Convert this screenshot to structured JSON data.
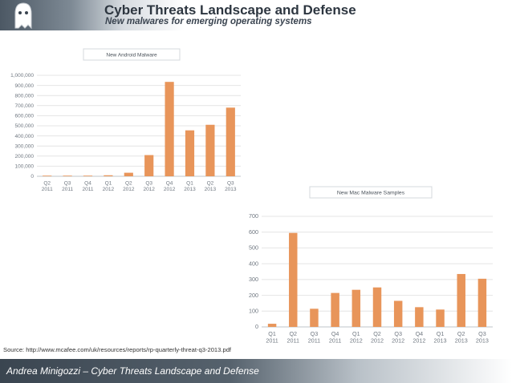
{
  "header": {
    "title": "Cyber Threats Landscape and Defense",
    "subtitle": "New malwares for emerging operating systems"
  },
  "source": "Source: http://www.mcafee.com/uk/resources/reports/rp-quarterly-threat-q3-2013.pdf",
  "footer": {
    "text": "Andrea Minigozzi – Cyber Threats Landscape and Defense"
  },
  "icons": {
    "logo": "ghost-icon"
  },
  "colors": {
    "bar": "#e8955a",
    "grid": "#e4e4e4",
    "axis_text": "#6f7780"
  },
  "chart_data": [
    {
      "type": "bar",
      "title": "New Android Malware",
      "categories": [
        [
          "Q2",
          "2011"
        ],
        [
          "Q3",
          "2011"
        ],
        [
          "Q4",
          "2011"
        ],
        [
          "Q1",
          "2012"
        ],
        [
          "Q2",
          "2012"
        ],
        [
          "Q3",
          "2012"
        ],
        [
          "Q4",
          "2012"
        ],
        [
          "Q1",
          "2013"
        ],
        [
          "Q2",
          "2013"
        ],
        [
          "Q3",
          "2013"
        ]
      ],
      "values": [
        2000,
        3000,
        6000,
        10000,
        35000,
        210000,
        935000,
        455000,
        510000,
        680000
      ],
      "yticks": [
        0,
        100000,
        200000,
        300000,
        400000,
        500000,
        600000,
        700000,
        800000,
        900000,
        1000000
      ],
      "ytick_labels": [
        "0",
        "100,000",
        "200,000",
        "300,000",
        "400,000",
        "500,000",
        "600,000",
        "700,000",
        "800,000",
        "900,000",
        "1,000,000"
      ],
      "ylim": [
        0,
        1000000
      ],
      "grid": true
    },
    {
      "type": "bar",
      "title": "New Mac Malware Samples",
      "categories": [
        [
          "Q1",
          "2011"
        ],
        [
          "Q2",
          "2011"
        ],
        [
          "Q3",
          "2011"
        ],
        [
          "Q4",
          "2011"
        ],
        [
          "Q1",
          "2012"
        ],
        [
          "Q2",
          "2012"
        ],
        [
          "Q3",
          "2012"
        ],
        [
          "Q4",
          "2012"
        ],
        [
          "Q1",
          "2013"
        ],
        [
          "Q2",
          "2013"
        ],
        [
          "Q3",
          "2013"
        ]
      ],
      "values": [
        20,
        595,
        115,
        215,
        235,
        250,
        165,
        125,
        110,
        335,
        305
      ],
      "yticks": [
        0,
        100,
        200,
        300,
        400,
        500,
        600,
        700
      ],
      "ytick_labels": [
        "0",
        "100",
        "200",
        "300",
        "400",
        "500",
        "600",
        "700"
      ],
      "ylim": [
        0,
        700
      ],
      "grid": true
    }
  ]
}
